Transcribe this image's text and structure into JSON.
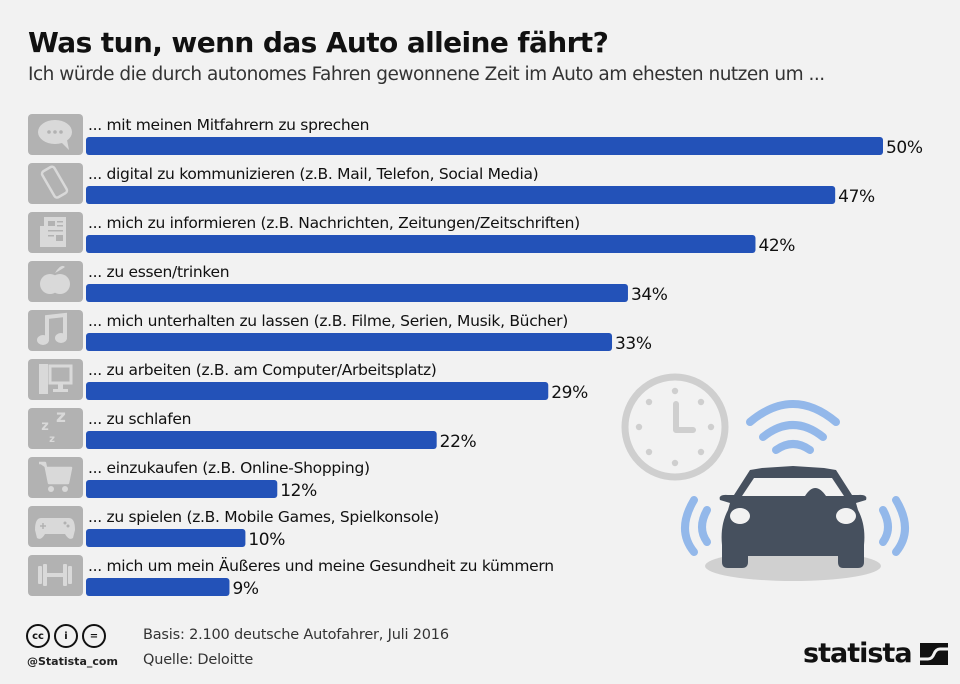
{
  "header": {
    "title": "Was tun, wenn das Auto alleine fährt?",
    "subtitle": "Ich würde die durch autonomes Fahren gewonnene Zeit im Auto am ehesten nutzen um ..."
  },
  "colors": {
    "bar": "#2352b8",
    "icon_bg": "#b2b2b2",
    "icon_fg": "#d9d9d9",
    "illustration_dark": "#46505e",
    "illustration_blue": "#93b8ea",
    "illustration_gray": "#cfcfcf",
    "background": "#f2f2f2"
  },
  "chart_data": {
    "type": "bar",
    "orientation": "horizontal",
    "title": "Was tun, wenn das Auto alleine fährt?",
    "subtitle": "Ich würde die durch autonomes Fahren gewonnene Zeit im Auto am ehesten nutzen um ...",
    "xlabel": "",
    "ylabel": "",
    "unit": "%",
    "xlim": [
      0,
      50
    ],
    "grid": false,
    "legend": "none",
    "categories": [
      "... mit meinen Mitfahrern zu sprechen",
      "... digital zu kommunizieren (z.B. Mail, Telefon, Social Media)",
      "... mich zu informieren (z.B. Nachrichten, Zeitungen/Zeitschriften)",
      "... zu essen/trinken",
      "... mich unterhalten zu lassen (z.B. Filme, Serien, Musik, Bücher)",
      "... zu arbeiten (z.B. am Computer/Arbeitsplatz)",
      "... zu schlafen",
      "... einzukaufen (z.B. Online-Shopping)",
      "... zu spielen (z.B. Mobile Games, Spielkonsole)",
      "... mich um mein Äußeres und meine Gesundheit zu kümmern"
    ],
    "values": [
      50,
      47,
      42,
      34,
      33,
      29,
      22,
      12,
      10,
      9
    ],
    "value_labels": [
      "50%",
      "47%",
      "42%",
      "34%",
      "33%",
      "29%",
      "22%",
      "12%",
      "10%",
      "9%"
    ],
    "icons": [
      "speech-bubble-icon",
      "smartphone-icon",
      "newspaper-icon",
      "apple-icon",
      "music-note-icon",
      "computer-icon",
      "sleep-zzz-icon",
      "shopping-cart-icon",
      "gamepad-icon",
      "dumbbell-icon"
    ]
  },
  "footer": {
    "license_icons": [
      "cc-icon",
      "by-icon",
      "nd-icon"
    ],
    "license_glyphs": [
      "cc",
      "i",
      "="
    ],
    "handle": "@Statista_com",
    "basis": "Basis: 2.100 deutsche Autofahrer, Juli 2016",
    "source": "Quelle: Deloitte",
    "brand": "statista"
  }
}
